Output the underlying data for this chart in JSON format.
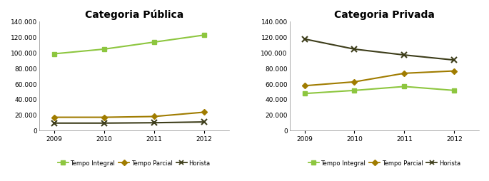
{
  "years": [
    2009,
    2010,
    2011,
    2012
  ],
  "publica": {
    "tempo_integral": [
      98000,
      104000,
      113000,
      122000
    ],
    "tempo_parcial": [
      16500,
      16500,
      17500,
      23000
    ],
    "horista": [
      9000,
      9000,
      9500,
      10500
    ]
  },
  "privada": {
    "tempo_integral": [
      47000,
      51000,
      56000,
      51000
    ],
    "tempo_parcial": [
      57000,
      62000,
      73000,
      76000
    ],
    "horista": [
      117000,
      104000,
      96500,
      90000
    ]
  },
  "title_publica": "Categoria Pública",
  "title_privada": "Categoria Privada",
  "color_integral": "#8dc63f",
  "color_parcial": "#a07c00",
  "color_horista": "#3d3d1a",
  "legend_labels": [
    "Tempo Integral",
    "Tempo Parcial",
    "Horista"
  ],
  "ylim": [
    0,
    140000
  ],
  "yticks": [
    0,
    20000,
    40000,
    60000,
    80000,
    100000,
    120000,
    140000
  ],
  "background_color": "#ffffff"
}
